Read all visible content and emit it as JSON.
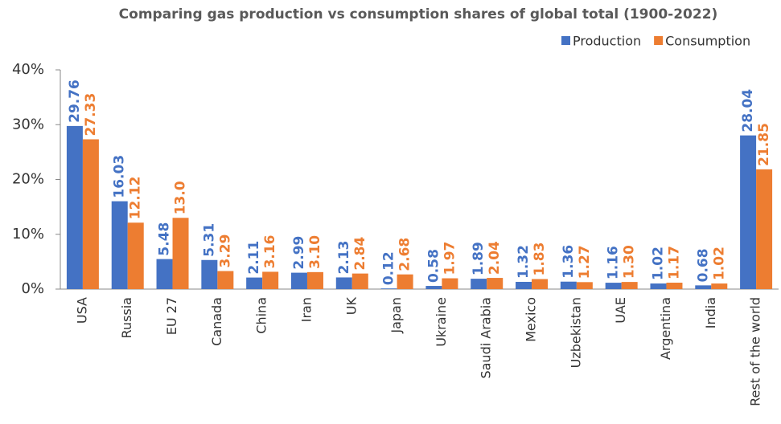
{
  "chart_data": {
    "type": "bar",
    "title": "Comparing gas production vs consumption shares of global total (1900-2022)",
    "categories": [
      "USA",
      "Russia",
      "EU 27",
      "Canada",
      "China",
      "Iran",
      "UK",
      "Japan",
      "Ukraine",
      "Saudi Arabia",
      "Mexico",
      "Uzbekistan",
      "UAE",
      "Argentina",
      "India",
      "Rest of the world"
    ],
    "series": [
      {
        "name": "Production",
        "color": "#4472c4",
        "values": [
          29.76,
          16.03,
          5.48,
          5.31,
          2.11,
          2.99,
          2.13,
          0.12,
          0.58,
          1.89,
          1.32,
          1.36,
          1.16,
          1.02,
          0.68,
          28.04
        ],
        "value_labels": [
          "29.76",
          "16.03",
          "5.48",
          "5.31",
          "2.11",
          "2.99",
          "2.13",
          "0.12",
          "0.58",
          "1.89",
          "1.32",
          "1.36",
          "1.16",
          "1.02",
          "0.68",
          "28.04"
        ]
      },
      {
        "name": "Consumption",
        "color": "#ed7d31",
        "values": [
          27.33,
          12.12,
          13.0,
          3.29,
          3.16,
          3.1,
          2.84,
          2.68,
          1.97,
          2.04,
          1.83,
          1.27,
          1.3,
          1.17,
          1.02,
          21.85
        ],
        "value_labels": [
          "27.33",
          "12.12",
          "13.0",
          "3.29",
          "3.16",
          "3.10",
          "2.84",
          "2.68",
          "1.97",
          "2.04",
          "1.83",
          "1.27",
          "1.30",
          "1.17",
          "1.02",
          "21.85"
        ]
      }
    ],
    "ylim": [
      0,
      40
    ],
    "yticks": [
      {
        "value": 0,
        "label": "0%"
      },
      {
        "value": 10,
        "label": "10%"
      },
      {
        "value": 20,
        "label": "20%"
      },
      {
        "value": 30,
        "label": "30%"
      },
      {
        "value": 40,
        "label": "40%"
      }
    ],
    "legend": "top-right"
  }
}
